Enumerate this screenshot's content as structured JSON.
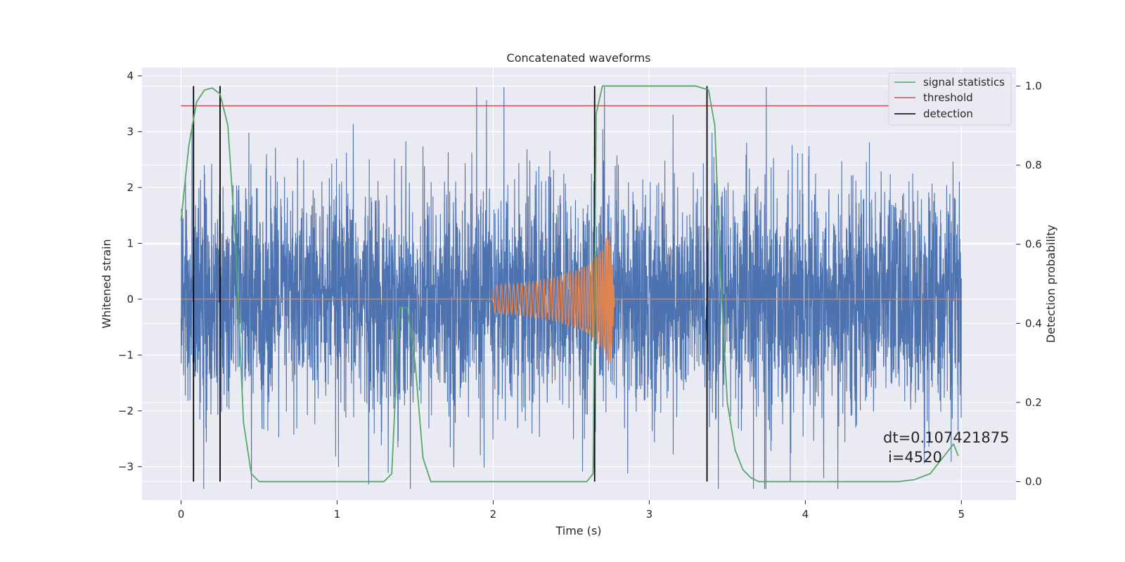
{
  "chart_data": {
    "type": "line",
    "title": "Concatenated waveforms",
    "xlabel": "Time (s)",
    "ylabel": "Whitened strain",
    "y2label": "Detection probability",
    "xlim": [
      -0.25,
      5.35
    ],
    "ylim": [
      -3.6,
      4.15
    ],
    "y2lim": [
      -0.047,
      1.047
    ],
    "x_ticks": [
      "0",
      "1",
      "2",
      "3",
      "4",
      "5"
    ],
    "y_ticks": [
      "−3",
      "−2",
      "−1",
      "0",
      "1",
      "2",
      "3",
      "4"
    ],
    "y2_ticks": [
      "0.0",
      "0.2",
      "0.4",
      "0.6",
      "0.8",
      "1.0"
    ],
    "grid": true,
    "legend_position": "top-right",
    "colors": {
      "background": "#eaeaf2",
      "strain": "#4c72b0",
      "injection": "#dd8452",
      "signal_statistics": "#55a868",
      "threshold": "#c44e52",
      "detection": "#000000"
    },
    "series": [
      {
        "name": "",
        "axis": "left",
        "description_kind": "noisy whitened strain",
        "x_range": [
          0,
          5
        ],
        "typical_amplitude": 1.0,
        "peak_range": [
          -3.4,
          3.8
        ]
      },
      {
        "name": "",
        "axis": "left",
        "description_kind": "injected chirp",
        "x": [
          0,
          2.0,
          2.2,
          2.4,
          2.6,
          2.7,
          2.75,
          2.78,
          5.0
        ],
        "envelope": [
          0,
          0.25,
          0.3,
          0.4,
          0.6,
          0.9,
          1.3,
          0,
          0
        ]
      },
      {
        "name": "signal statistics",
        "axis": "right",
        "x": [
          0,
          0.05,
          0.1,
          0.15,
          0.2,
          0.25,
          0.3,
          0.35,
          0.4,
          0.45,
          0.5,
          1.3,
          1.35,
          1.4,
          1.45,
          1.5,
          1.55,
          1.6,
          2.6,
          2.64,
          2.66,
          2.7,
          3.3,
          3.38,
          3.42,
          3.46,
          3.5,
          3.55,
          3.6,
          3.65,
          3.7,
          4.6,
          4.7,
          4.8,
          4.9,
          4.95,
          4.98
        ],
        "values": [
          0.66,
          0.85,
          0.96,
          0.99,
          0.995,
          0.98,
          0.9,
          0.6,
          0.15,
          0.02,
          0.0,
          0.0,
          0.02,
          0.44,
          0.44,
          0.3,
          0.06,
          0.0,
          0.0,
          0.02,
          0.93,
          1.0,
          1.0,
          0.99,
          0.9,
          0.5,
          0.2,
          0.08,
          0.03,
          0.01,
          0.0,
          0.0,
          0.005,
          0.02,
          0.07,
          0.095,
          0.065
        ]
      },
      {
        "name": "threshold",
        "axis": "right",
        "x": [
          0,
          5
        ],
        "values": [
          0.95,
          0.95
        ]
      },
      {
        "name": "detection",
        "axis": "right",
        "x": [
          0.08,
          0.25,
          2.65,
          3.37
        ],
        "values_from": 0.0,
        "values_to": 1.0
      }
    ],
    "annotations": [
      "dt=0.107421875",
      "i=4520"
    ]
  }
}
